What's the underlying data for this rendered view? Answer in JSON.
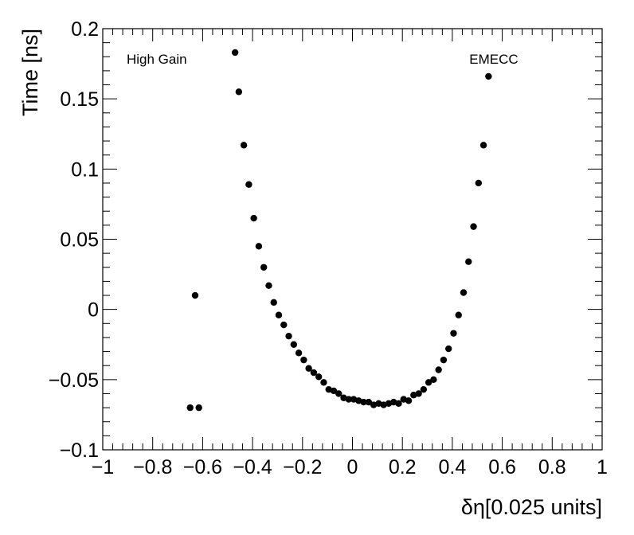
{
  "chart_data": {
    "type": "scatter",
    "xlabel": "δη[0.025 units]",
    "ylabel": "Time [ns]",
    "xlim": [
      -1,
      1
    ],
    "ylim": [
      -0.1,
      0.2
    ],
    "x_ticks": [
      -1,
      -0.8,
      -0.6,
      -0.4,
      -0.2,
      0,
      0.2,
      0.4,
      0.6,
      0.8,
      1
    ],
    "x_tick_labels": [
      "−1",
      "−0.8",
      "−0.6",
      "−0.4",
      "−0.2",
      "0",
      "0.2",
      "0.4",
      "0.6",
      "0.8",
      "1"
    ],
    "y_ticks": [
      -0.1,
      -0.05,
      0,
      0.05,
      0.1,
      0.15,
      0.2
    ],
    "y_tick_labels": [
      "−0.1",
      "−0.05",
      "0",
      "0.05",
      "0.1",
      "0.15",
      "0.2"
    ],
    "annotations": [
      {
        "text": "High Gain",
        "position": "top-left"
      },
      {
        "text": "EMECC",
        "position": "top-right"
      }
    ],
    "grid": false,
    "marker_color": "#000000",
    "points": [
      {
        "x": -0.65,
        "y": -0.07
      },
      {
        "x": -0.63,
        "y": 0.01
      },
      {
        "x": -0.615,
        "y": -0.07
      },
      {
        "x": -0.47,
        "y": 0.183
      },
      {
        "x": -0.455,
        "y": 0.155
      },
      {
        "x": -0.435,
        "y": 0.117
      },
      {
        "x": -0.415,
        "y": 0.089
      },
      {
        "x": -0.395,
        "y": 0.065
      },
      {
        "x": -0.375,
        "y": 0.045
      },
      {
        "x": -0.355,
        "y": 0.03
      },
      {
        "x": -0.335,
        "y": 0.017
      },
      {
        "x": -0.315,
        "y": 0.005
      },
      {
        "x": -0.295,
        "y": -0.004
      },
      {
        "x": -0.275,
        "y": -0.011
      },
      {
        "x": -0.255,
        "y": -0.019
      },
      {
        "x": -0.235,
        "y": -0.025
      },
      {
        "x": -0.215,
        "y": -0.031
      },
      {
        "x": -0.195,
        "y": -0.036
      },
      {
        "x": -0.175,
        "y": -0.042
      },
      {
        "x": -0.155,
        "y": -0.045
      },
      {
        "x": -0.135,
        "y": -0.048
      },
      {
        "x": -0.115,
        "y": -0.052
      },
      {
        "x": -0.095,
        "y": -0.057
      },
      {
        "x": -0.075,
        "y": -0.058
      },
      {
        "x": -0.055,
        "y": -0.06
      },
      {
        "x": -0.035,
        "y": -0.063
      },
      {
        "x": -0.015,
        "y": -0.064
      },
      {
        "x": 0.005,
        "y": -0.064
      },
      {
        "x": 0.025,
        "y": -0.065
      },
      {
        "x": 0.045,
        "y": -0.066
      },
      {
        "x": 0.065,
        "y": -0.066
      },
      {
        "x": 0.085,
        "y": -0.068
      },
      {
        "x": 0.105,
        "y": -0.067
      },
      {
        "x": 0.125,
        "y": -0.068
      },
      {
        "x": 0.145,
        "y": -0.067
      },
      {
        "x": 0.165,
        "y": -0.066
      },
      {
        "x": 0.185,
        "y": -0.067
      },
      {
        "x": 0.205,
        "y": -0.064
      },
      {
        "x": 0.225,
        "y": -0.065
      },
      {
        "x": 0.245,
        "y": -0.061
      },
      {
        "x": 0.265,
        "y": -0.06
      },
      {
        "x": 0.285,
        "y": -0.057
      },
      {
        "x": 0.305,
        "y": -0.052
      },
      {
        "x": 0.325,
        "y": -0.05
      },
      {
        "x": 0.345,
        "y": -0.043
      },
      {
        "x": 0.365,
        "y": -0.036
      },
      {
        "x": 0.385,
        "y": -0.028
      },
      {
        "x": 0.405,
        "y": -0.017
      },
      {
        "x": 0.425,
        "y": -0.004
      },
      {
        "x": 0.445,
        "y": 0.012
      },
      {
        "x": 0.465,
        "y": 0.034
      },
      {
        "x": 0.485,
        "y": 0.059
      },
      {
        "x": 0.505,
        "y": 0.09
      },
      {
        "x": 0.525,
        "y": 0.117
      },
      {
        "x": 0.545,
        "y": 0.166
      }
    ]
  }
}
